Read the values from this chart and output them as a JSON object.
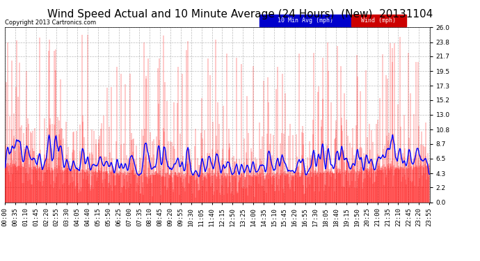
{
  "title": "Wind Speed Actual and 10 Minute Average (24 Hours)  (New)  20131104",
  "copyright": "Copyright 2013 Cartronics.com",
  "legend_avg_label": "10 Min Avg (mph)",
  "legend_wind_label": "Wind (mph)",
  "ylim": [
    0.0,
    26.0
  ],
  "yticks": [
    0.0,
    2.2,
    4.3,
    6.5,
    8.7,
    10.8,
    13.0,
    15.2,
    17.3,
    19.5,
    21.7,
    23.8,
    26.0
  ],
  "background_color": "#ffffff",
  "plot_bg_color": "#ffffff",
  "grid_color": "#aaaaaa",
  "bar_color": "#FF0000",
  "avg_line_color": "#0000FF",
  "title_fontsize": 11,
  "tick_fontsize": 6.5,
  "time_labels": [
    "00:00",
    "00:35",
    "01:10",
    "01:45",
    "02:20",
    "02:55",
    "03:30",
    "04:05",
    "04:40",
    "05:15",
    "05:50",
    "06:25",
    "07:00",
    "07:35",
    "08:10",
    "08:45",
    "09:20",
    "09:55",
    "10:30",
    "11:05",
    "11:40",
    "12:15",
    "12:50",
    "13:25",
    "14:00",
    "14:35",
    "15:10",
    "15:45",
    "16:20",
    "16:55",
    "17:30",
    "18:05",
    "18:40",
    "19:15",
    "19:50",
    "20:25",
    "21:00",
    "21:35",
    "22:10",
    "22:45",
    "23:20",
    "23:55"
  ]
}
